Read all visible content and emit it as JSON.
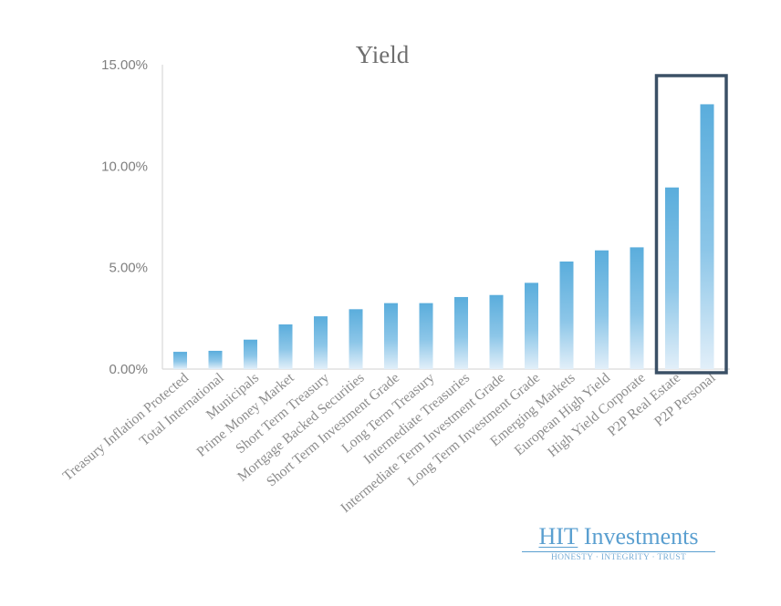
{
  "chart_data": {
    "type": "bar",
    "title": "Yield",
    "xlabel": "",
    "ylabel": "",
    "ylim": [
      0,
      15
    ],
    "yticks": [
      "0.00%",
      "5.00%",
      "10.00%",
      "15.00%"
    ],
    "ytick_values": [
      0,
      5,
      10,
      15
    ],
    "grid": false,
    "legend": "none",
    "categories": [
      "Treasury Inflation Protected",
      "Total International",
      "Municipals",
      "Prime Money Market",
      "Short Term Treasury",
      "Mortgage Backed Securities",
      "Short Term Investment Grade",
      "Long Term Treasury",
      "Intermediate Treasuries",
      "Intermediate Term Investment Grade",
      "Long Term Investment Grade",
      "Emerging Markets",
      "European High Yield",
      "High Yield Corporate",
      "P2P Real Estate",
      "P2P Personal"
    ],
    "values": [
      0.85,
      0.9,
      1.45,
      2.2,
      2.6,
      2.95,
      3.25,
      3.25,
      3.55,
      3.65,
      4.25,
      5.3,
      5.85,
      6.0,
      8.95,
      13.05
    ],
    "highlighted_categories": [
      "P2P Real Estate",
      "P2P Personal"
    ],
    "colors": {
      "bar_top": "#5aaddc",
      "bar_bottom": "#e2eff9",
      "axis": "#d9d9d9",
      "highlight_box": "#3b5066"
    }
  },
  "logo": {
    "name_prefix": "HIT",
    "name_suffix": " Investments",
    "tagline": "HONESTY · INTEGRITY · TRUST",
    "color": "#5a9fd0"
  }
}
